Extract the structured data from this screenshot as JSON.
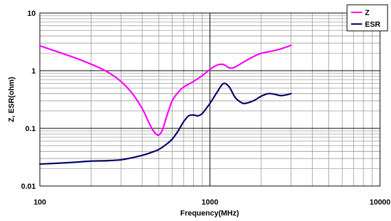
{
  "chart_data": {
    "type": "line",
    "xlabel": "Frequency(MHz)",
    "ylabel": "Z, ESR(ohm)",
    "x_scale": "log",
    "y_scale": "log",
    "xlim": [
      100,
      10000
    ],
    "ylim": [
      0.01,
      10
    ],
    "x_ticks": [
      "100",
      "1000",
      "10000"
    ],
    "y_ticks": [
      "10",
      "1",
      "0.1",
      "0.01"
    ],
    "grid": true,
    "legend_position": "top-right",
    "series": [
      {
        "name": "Z",
        "color": "#ff00ff",
        "x": [
          100,
          150,
          200,
          250,
          300,
          350,
          400,
          430,
          460,
          490,
          510,
          530,
          560,
          600,
          650,
          700,
          800,
          900,
          1000,
          1100,
          1200,
          1300,
          1400,
          1600,
          1800,
          2000,
          2500,
          3000
        ],
        "y": [
          2.7,
          1.8,
          1.3,
          0.95,
          0.65,
          0.4,
          0.22,
          0.14,
          0.095,
          0.077,
          0.08,
          0.1,
          0.17,
          0.3,
          0.42,
          0.52,
          0.65,
          0.82,
          1.05,
          1.25,
          1.28,
          1.12,
          1.15,
          1.45,
          1.75,
          2.0,
          2.3,
          2.75
        ]
      },
      {
        "name": "ESR",
        "color": "#000066",
        "x": [
          100,
          150,
          200,
          250,
          300,
          350,
          400,
          450,
          500,
          550,
          600,
          650,
          700,
          750,
          800,
          850,
          900,
          950,
          1000,
          1100,
          1200,
          1300,
          1400,
          1500,
          1600,
          1800,
          2000,
          2200,
          2400,
          2600,
          2800,
          3000
        ],
        "y": [
          0.024,
          0.0255,
          0.027,
          0.0275,
          0.0285,
          0.031,
          0.034,
          0.038,
          0.043,
          0.052,
          0.065,
          0.09,
          0.13,
          0.165,
          0.17,
          0.165,
          0.18,
          0.22,
          0.27,
          0.42,
          0.6,
          0.52,
          0.35,
          0.29,
          0.27,
          0.3,
          0.36,
          0.4,
          0.39,
          0.37,
          0.38,
          0.4
        ]
      }
    ]
  }
}
